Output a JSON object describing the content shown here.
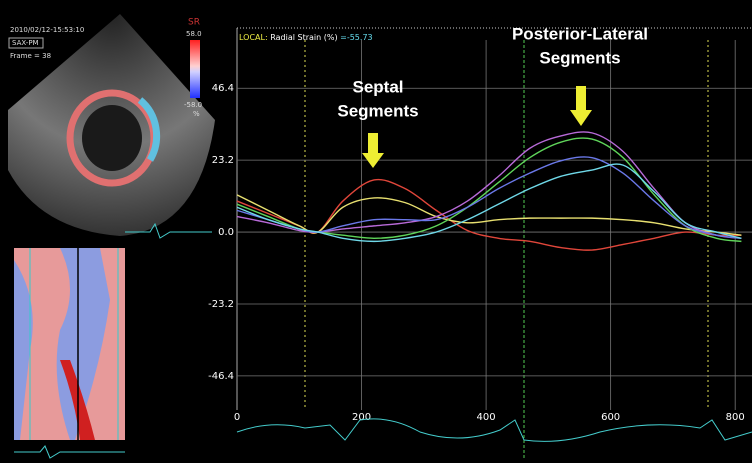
{
  "echo_panel": {
    "timestamp": "2010/02/12-15:53:10",
    "view": "SAX-PM",
    "frame": "Frame = 38",
    "colorbar": {
      "label": "SR",
      "max": "58.0",
      "min": "-58.0",
      "unit": "%"
    }
  },
  "chart_data": {
    "type": "line",
    "title": {
      "prefix": "LOCAL:",
      "measure": "Radial Strain (%)",
      "readout": "=-55.73"
    },
    "annotations": [
      {
        "lines": [
          "Septal",
          "Segments"
        ]
      },
      {
        "lines": [
          "Posterior-Lateral",
          "Segments"
        ]
      }
    ],
    "x": [
      0,
      50,
      100,
      130,
      170,
      220,
      270,
      320,
      370,
      420,
      470,
      520,
      570,
      620,
      670,
      720,
      770,
      810
    ],
    "xlim": [
      0,
      827
    ],
    "xticks": [
      0,
      200,
      400,
      600,
      800
    ],
    "ylim": [
      -57.4,
      66.8
    ],
    "yticks": [
      -46.4,
      -23.2,
      {
        "value": 0,
        "label": "0.0"
      },
      23.2,
      46.4
    ],
    "grid": true,
    "series": [
      {
        "color": "#e0463a",
        "values": [
          10,
          6,
          2,
          0,
          10,
          16.8,
          14,
          7,
          0.5,
          -2,
          -3,
          -5,
          -5.8,
          -4,
          -2,
          0,
          -1,
          -1
        ]
      },
      {
        "color": "#e8e070",
        "values": [
          12,
          7,
          2,
          0,
          8,
          11,
          9.5,
          5,
          3,
          4,
          4.5,
          4.5,
          4.5,
          4,
          3,
          1,
          0,
          -1
        ]
      },
      {
        "color": "#5fd55a",
        "values": [
          9,
          5,
          1,
          0,
          -1,
          -2,
          -1,
          2,
          8,
          16,
          24,
          29,
          30,
          24,
          12,
          2,
          -2,
          -3
        ]
      },
      {
        "color": "#b86ad8",
        "values": [
          5,
          3,
          0.5,
          0,
          1,
          2,
          3,
          5,
          10,
          18,
          27,
          31,
          32,
          26,
          14,
          3,
          -1,
          -2
        ]
      },
      {
        "color": "#6a78e8",
        "values": [
          7,
          4,
          1,
          0,
          2,
          4,
          4,
          4,
          8,
          14,
          19,
          23,
          24,
          19,
          10,
          2,
          -1,
          -2
        ]
      },
      {
        "color": "#6fd8e8",
        "values": [
          8,
          4,
          1,
          0,
          -2,
          -3,
          -2,
          0,
          4,
          9,
          14,
          18,
          20,
          21.6,
          13,
          3,
          0,
          -2
        ]
      }
    ]
  }
}
